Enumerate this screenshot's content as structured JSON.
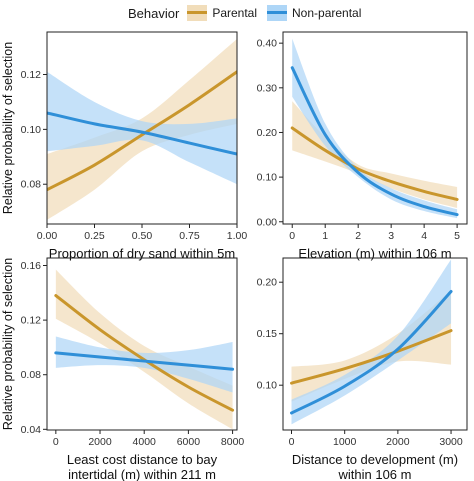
{
  "legend": {
    "title": "Behavior",
    "items": [
      {
        "label": "Parental",
        "color": "#C9962C",
        "band": "#F1DDBA"
      },
      {
        "label": "Non-parental",
        "color": "#2F8FD8",
        "band": "#AED6F7"
      }
    ]
  },
  "y_axis_label": "Relative probability of selection",
  "chart_data": [
    {
      "type": "line",
      "xlabel": "Proportion of dry sand within 5m",
      "xlim": [
        0,
        1
      ],
      "ylim": [
        0.0655,
        0.1355
      ],
      "x_ticks": [
        0,
        0.25,
        0.5,
        0.75,
        1
      ],
      "x_tick_labels": [
        "0.00",
        "0.25",
        "0.50",
        "0.75",
        "1.00"
      ],
      "y_ticks": [
        0.08,
        0.1,
        0.12
      ],
      "y_tick_labels": [
        "0.08",
        "0.10",
        "0.12"
      ],
      "grid": false,
      "series": [
        {
          "name": "Parental",
          "x": [
            0,
            0.25,
            0.5,
            0.75,
            1
          ],
          "y": [
            0.078,
            0.087,
            0.098,
            0.109,
            0.121
          ],
          "lower": [
            0.067,
            0.078,
            0.092,
            0.098,
            0.102
          ],
          "upper": [
            0.091,
            0.097,
            0.104,
            0.118,
            0.133
          ]
        },
        {
          "name": "Non-parental",
          "x": [
            0,
            0.25,
            0.5,
            0.75,
            1
          ],
          "y": [
            0.106,
            0.102,
            0.099,
            0.095,
            0.091
          ],
          "lower": [
            0.092,
            0.094,
            0.096,
            0.088,
            0.08
          ],
          "upper": [
            0.121,
            0.11,
            0.103,
            0.102,
            0.104
          ]
        }
      ]
    },
    {
      "type": "line",
      "xlabel": "Elevation (m) within 106 m",
      "xlim": [
        -0.28,
        5.3
      ],
      "ylim": [
        -0.005,
        0.425
      ],
      "x_ticks": [
        0,
        1,
        2,
        3,
        4,
        5
      ],
      "x_tick_labels": [
        "0",
        "1",
        "2",
        "3",
        "4",
        "5"
      ],
      "y_ticks": [
        0,
        0.1,
        0.2,
        0.3,
        0.4
      ],
      "y_tick_labels": [
        "0.00",
        "0.10",
        "0.20",
        "0.30",
        "0.40"
      ],
      "grid": false,
      "series": [
        {
          "name": "Parental",
          "x": [
            0,
            1,
            2,
            3,
            4,
            5
          ],
          "y": [
            0.21,
            0.16,
            0.118,
            0.09,
            0.068,
            0.05
          ],
          "lower": [
            0.16,
            0.135,
            0.108,
            0.075,
            0.05,
            0.031
          ],
          "upper": [
            0.27,
            0.19,
            0.128,
            0.108,
            0.092,
            0.078
          ]
        },
        {
          "name": "Non-parental",
          "x": [
            0,
            1,
            2,
            3,
            4,
            5
          ],
          "y": [
            0.345,
            0.195,
            0.11,
            0.062,
            0.034,
            0.016
          ],
          "lower": [
            0.28,
            0.17,
            0.1,
            0.05,
            0.024,
            0.008
          ],
          "upper": [
            0.41,
            0.22,
            0.12,
            0.075,
            0.048,
            0.028
          ]
        }
      ]
    },
    {
      "type": "line",
      "xlabel": "Least cost distance to bay intertidal (m) within 211 m",
      "xlim": [
        -400,
        8200
      ],
      "ylim": [
        0.0395,
        0.1655
      ],
      "x_ticks": [
        0,
        2000,
        4000,
        6000,
        8000
      ],
      "x_tick_labels": [
        "0",
        "2000",
        "4000",
        "6000",
        "8000"
      ],
      "y_ticks": [
        0.04,
        0.08,
        0.12,
        0.16
      ],
      "y_tick_labels": [
        "0.04",
        "0.08",
        "0.12",
        "0.16"
      ],
      "grid": false,
      "series": [
        {
          "name": "Parental",
          "x": [
            0,
            2000,
            4000,
            6000,
            8000
          ],
          "y": [
            0.138,
            0.113,
            0.091,
            0.071,
            0.054
          ],
          "lower": [
            0.121,
            0.103,
            0.082,
            0.059,
            0.04
          ],
          "upper": [
            0.157,
            0.125,
            0.101,
            0.086,
            0.072
          ]
        },
        {
          "name": "Non-parental",
          "x": [
            0,
            2000,
            4000,
            6000,
            8000
          ],
          "y": [
            0.096,
            0.093,
            0.09,
            0.087,
            0.084
          ],
          "lower": [
            0.085,
            0.087,
            0.085,
            0.077,
            0.067
          ],
          "upper": [
            0.108,
            0.1,
            0.096,
            0.098,
            0.104
          ]
        }
      ]
    },
    {
      "type": "line",
      "xlabel": "Distance to development (m) within 106 m",
      "xlim": [
        -160,
        3300
      ],
      "ylim": [
        0.0565,
        0.2235
      ],
      "x_ticks": [
        0,
        1000,
        2000,
        3000
      ],
      "x_tick_labels": [
        "0",
        "1000",
        "2000",
        "3000"
      ],
      "y_ticks": [
        0.1,
        0.15,
        0.2
      ],
      "y_tick_labels": [
        "0.10",
        "0.15",
        "0.20"
      ],
      "grid": false,
      "series": [
        {
          "name": "Parental",
          "x": [
            0,
            1000,
            2000,
            3000
          ],
          "y": [
            0.102,
            0.116,
            0.133,
            0.153
          ],
          "lower": [
            0.084,
            0.106,
            0.123,
            0.12
          ],
          "upper": [
            0.118,
            0.124,
            0.15,
            0.192
          ]
        },
        {
          "name": "Non-parental",
          "x": [
            0,
            1000,
            2000,
            3000
          ],
          "y": [
            0.073,
            0.099,
            0.135,
            0.191
          ],
          "lower": [
            0.062,
            0.09,
            0.124,
            0.16
          ],
          "upper": [
            0.086,
            0.11,
            0.148,
            0.222
          ]
        }
      ]
    }
  ]
}
